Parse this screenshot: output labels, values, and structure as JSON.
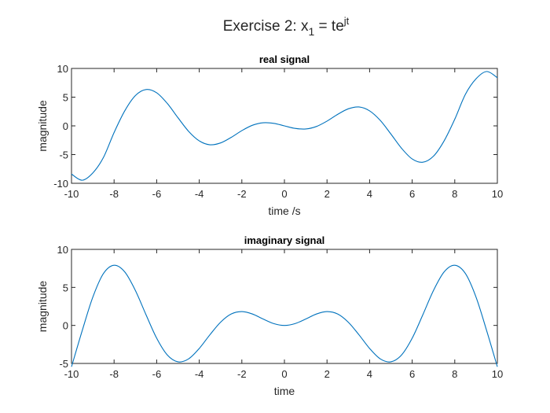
{
  "figure": {
    "title_main": "Exercise 2: x",
    "title_sub": "1",
    "title_eq": " = te",
    "title_sup": "jt"
  },
  "chart_data": [
    {
      "type": "line",
      "title": "real signal",
      "xlabel": "time /s",
      "ylabel": "magnitude",
      "xlim": [
        -10,
        10
      ],
      "ylim": [
        -10,
        10
      ],
      "xticks": [
        -10,
        -8,
        -6,
        -4,
        -2,
        0,
        2,
        4,
        6,
        8,
        10
      ],
      "yticks": [
        -10,
        -5,
        0,
        5,
        10
      ],
      "grid": false,
      "color": "#0072BD",
      "series": [
        {
          "x": [
            -10,
            -9.5,
            -9,
            -8.5,
            -8,
            -7.5,
            -7,
            -6.5,
            -6,
            -5.5,
            -5,
            -4.5,
            -4,
            -3.5,
            -3,
            -2.5,
            -2,
            -1.5,
            -1,
            -0.5,
            0,
            0.5,
            1,
            1.5,
            2,
            2.5,
            3,
            3.5,
            4,
            4.5,
            5,
            5.5,
            6,
            6.5,
            7,
            7.5,
            8,
            8.5,
            9,
            9.5,
            10
          ],
          "y": [
            -8.39,
            -9.47,
            -8.2,
            -5.5,
            -1.16,
            2.61,
            5.28,
            6.33,
            5.76,
            3.9,
            1.42,
            -0.95,
            -2.61,
            -3.29,
            -2.97,
            -2.0,
            -0.83,
            0.11,
            0.54,
            0.44,
            0,
            -0.44,
            -0.54,
            -0.11,
            0.83,
            2.0,
            2.97,
            3.29,
            2.61,
            0.95,
            -1.42,
            -3.9,
            -5.76,
            -6.33,
            -5.28,
            -2.61,
            1.16,
            5.5,
            8.2,
            9.47,
            8.39
          ]
        }
      ]
    },
    {
      "type": "line",
      "title": "imaginary signal",
      "xlabel": "time",
      "ylabel": "magnitude",
      "xlim": [
        -10,
        10
      ],
      "ylim": [
        -5,
        10
      ],
      "xticks": [
        -10,
        -8,
        -6,
        -4,
        -2,
        0,
        2,
        4,
        6,
        8,
        10
      ],
      "yticks": [
        -5,
        0,
        5,
        10
      ],
      "grid": false,
      "color": "#0072BD",
      "series": [
        {
          "x": [
            -10,
            -9.5,
            -9,
            -8.5,
            -8,
            -7.5,
            -7,
            -6.5,
            -6,
            -5.5,
            -5,
            -4.5,
            -4,
            -3.5,
            -3,
            -2.5,
            -2,
            -1.5,
            -1,
            -0.5,
            0,
            0.5,
            1,
            1.5,
            2,
            2.5,
            3,
            3.5,
            4,
            4.5,
            5,
            5.5,
            6,
            6.5,
            7,
            7.5,
            8,
            8.5,
            9,
            9.5,
            10
          ],
          "y": [
            -5.44,
            -0.71,
            3.71,
            6.82,
            7.91,
            7.04,
            4.6,
            1.4,
            -1.68,
            -3.89,
            -4.79,
            -4.4,
            -3.03,
            -1.23,
            0.42,
            1.5,
            1.82,
            1.5,
            0.84,
            0.24,
            0,
            0.24,
            0.84,
            1.5,
            1.82,
            1.5,
            0.42,
            -1.23,
            -3.03,
            -4.4,
            -4.79,
            -3.89,
            -1.68,
            1.4,
            4.6,
            7.04,
            7.91,
            6.82,
            3.71,
            -0.71,
            -5.44
          ]
        }
      ]
    }
  ]
}
